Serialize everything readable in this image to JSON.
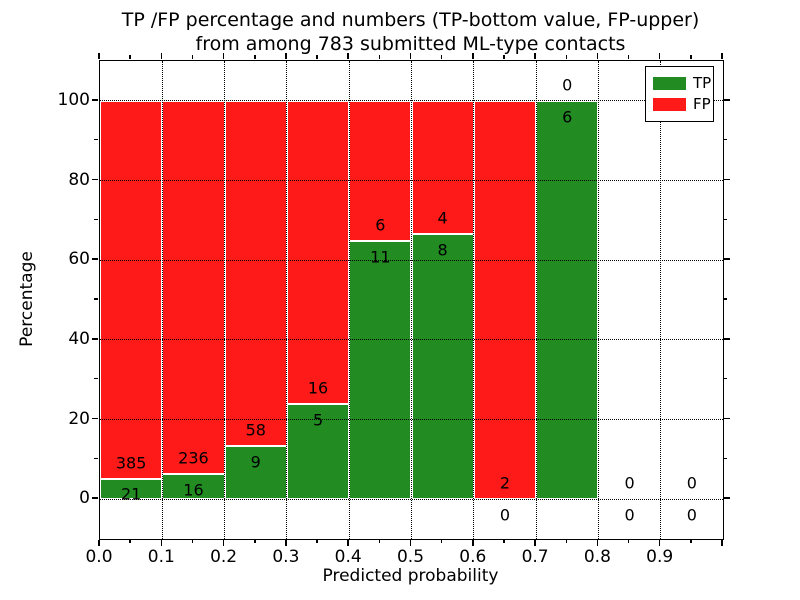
{
  "figure": {
    "title_line1": "TP /FP percentage and numbers (TP-bottom value, FP-upper)",
    "title_line2": "from among 783 submitted ML-type contacts"
  },
  "legend": {
    "items": [
      {
        "label": "TP",
        "color": "#228B22"
      },
      {
        "label": "FP",
        "color": "#ff1a1a"
      }
    ]
  },
  "chart_data": {
    "type": "bar",
    "stacked": true,
    "normalized": "each 0.1-wide bin scaled to 100%",
    "title": "TP /FP percentage and numbers (TP-bottom value, FP-upper) from among 783 submitted ML-type contacts",
    "xlabel": "Predicted probability",
    "ylabel": "Percentage",
    "total_contacts": 783,
    "bin_edges": [
      0.0,
      0.1,
      0.2,
      0.3,
      0.4,
      0.5,
      0.6,
      0.7,
      0.8,
      0.9,
      1.0
    ],
    "series": [
      {
        "name": "TP",
        "color": "#228B22",
        "counts": [
          21,
          16,
          9,
          5,
          11,
          8,
          0,
          6,
          0,
          0
        ]
      },
      {
        "name": "FP",
        "color": "#ff1a1a",
        "counts": [
          385,
          236,
          58,
          16,
          6,
          4,
          2,
          0,
          0,
          0
        ]
      }
    ],
    "tp_percent_per_bin": [
      5.2,
      6.3,
      13.4,
      23.8,
      64.7,
      66.7,
      0.0,
      100.0,
      0.0,
      0.0
    ],
    "x_tick_labels": [
      "0.0",
      "0.1",
      "0.2",
      "0.3",
      "0.4",
      "0.5",
      "0.6",
      "0.7",
      "0.8",
      "0.9"
    ],
    "y_tick_values": [
      0,
      20,
      40,
      60,
      80,
      100
    ],
    "y_tick_labels": [
      "0",
      "20",
      "40",
      "60",
      "80",
      "100"
    ],
    "xlim": [
      0.0,
      1.0
    ],
    "ylim": [
      -10,
      110
    ],
    "grid": {
      "style": "dotted",
      "color": "#000000",
      "axes": "both"
    },
    "legend_position": "upper right",
    "bar_edge_color": "#ffffff"
  }
}
